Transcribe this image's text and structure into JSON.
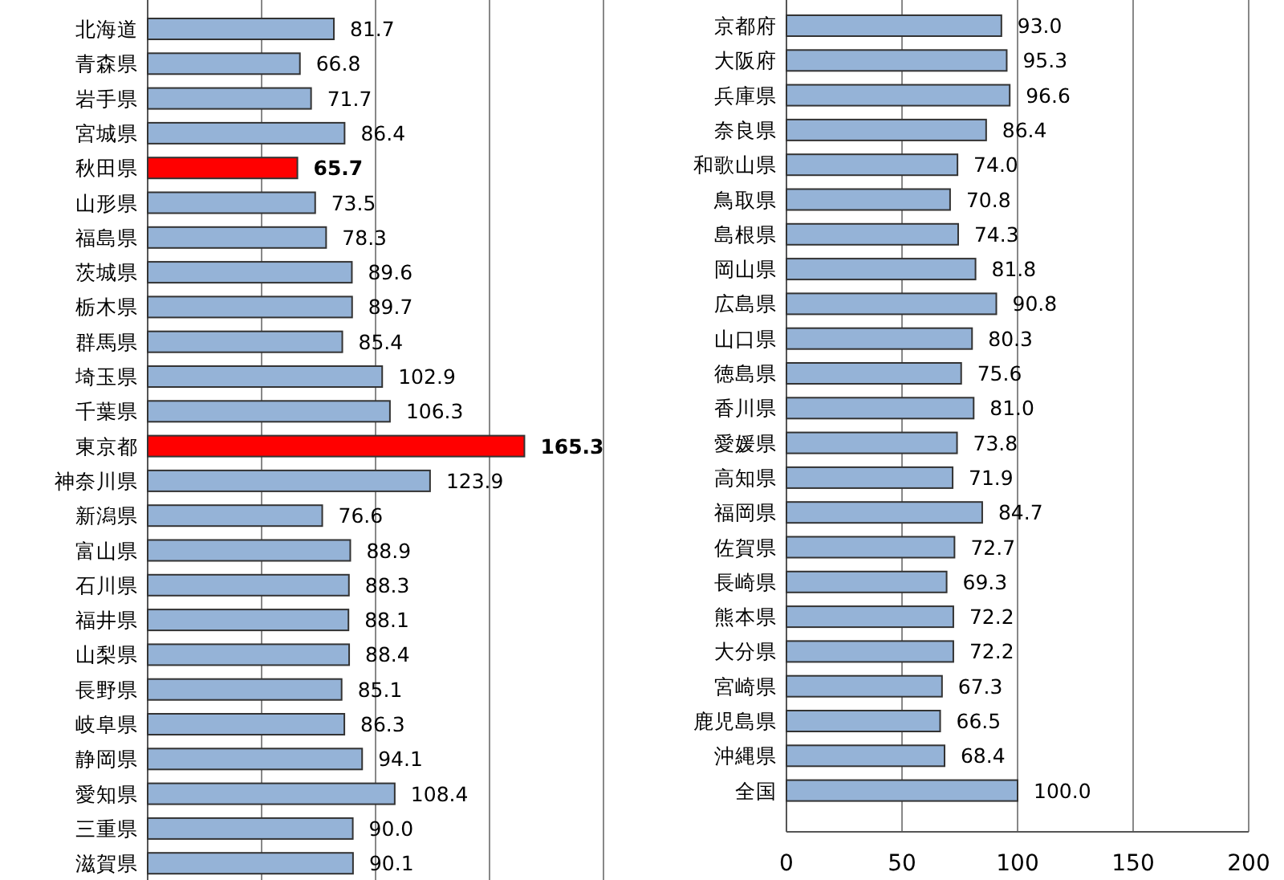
{
  "chart_data": [
    {
      "type": "bar",
      "orientation": "horizontal",
      "categories": [
        "北海道",
        "青森県",
        "岩手県",
        "宮城県",
        "秋田県",
        "山形県",
        "福島県",
        "茨城県",
        "栃木県",
        "群馬県",
        "埼玉県",
        "千葉県",
        "東京都",
        "神奈川県",
        "新潟県",
        "富山県",
        "石川県",
        "福井県",
        "山梨県",
        "長野県",
        "岐阜県",
        "静岡県",
        "愛知県",
        "三重県",
        "滋賀県"
      ],
      "values": [
        81.7,
        66.8,
        71.7,
        86.4,
        65.7,
        73.5,
        78.3,
        89.6,
        89.7,
        85.4,
        102.9,
        106.3,
        165.3,
        123.9,
        76.6,
        88.9,
        88.3,
        88.1,
        88.4,
        85.1,
        86.3,
        94.1,
        108.4,
        90.0,
        90.1
      ],
      "colors": [
        "#95b3d7",
        "#95b3d7",
        "#95b3d7",
        "#95b3d7",
        "#ff0000",
        "#95b3d7",
        "#95b3d7",
        "#95b3d7",
        "#95b3d7",
        "#95b3d7",
        "#95b3d7",
        "#95b3d7",
        "#ff0000",
        "#95b3d7",
        "#95b3d7",
        "#95b3d7",
        "#95b3d7",
        "#95b3d7",
        "#95b3d7",
        "#95b3d7",
        "#95b3d7",
        "#95b3d7",
        "#95b3d7",
        "#95b3d7",
        "#95b3d7"
      ],
      "value_labels": [
        "81.7",
        "66.8",
        "71.7",
        "86.4",
        "65.7",
        "73.5",
        "78.3",
        "89.6",
        "89.7",
        "85.4",
        "102.9",
        "106.3",
        "165.3",
        "123.9",
        "76.6",
        "88.9",
        "88.3",
        "88.1",
        "88.4",
        "85.1",
        "86.3",
        "94.1",
        "108.4",
        "90.0",
        "90.1"
      ],
      "xlim": [
        0,
        200
      ],
      "xticks": [
        0,
        50,
        100,
        150,
        200
      ],
      "tick_labels": "y",
      "grid": "x"
    },
    {
      "type": "bar",
      "orientation": "horizontal",
      "categories": [
        "京都府",
        "大阪府",
        "兵庫県",
        "奈良県",
        "和歌山県",
        "鳥取県",
        "島根県",
        "岡山県",
        "広島県",
        "山口県",
        "徳島県",
        "香川県",
        "愛媛県",
        "高知県",
        "福岡県",
        "佐賀県",
        "長崎県",
        "熊本県",
        "大分県",
        "宮崎県",
        "鹿児島県",
        "沖縄県",
        "全国"
      ],
      "values": [
        93.0,
        95.3,
        96.6,
        86.4,
        74.0,
        70.8,
        74.3,
        81.8,
        90.8,
        80.3,
        75.6,
        81.0,
        73.8,
        71.9,
        84.7,
        72.7,
        69.3,
        72.2,
        72.2,
        67.3,
        66.5,
        68.4,
        100.0
      ],
      "color": "#95b3d7",
      "value_labels": [
        "93.0",
        "95.3",
        "96.6",
        "86.4",
        "74.0",
        "70.8",
        "74.3",
        "81.8",
        "90.8",
        "80.3",
        "75.6",
        "81.0",
        "73.8",
        "71.9",
        "84.7",
        "72.7",
        "69.3",
        "72.2",
        "72.2",
        "67.3",
        "66.5",
        "68.4",
        "100.0"
      ],
      "xlim": [
        0,
        200
      ],
      "xticks": [
        0,
        50,
        100,
        150,
        200
      ],
      "grid": "x"
    }
  ]
}
